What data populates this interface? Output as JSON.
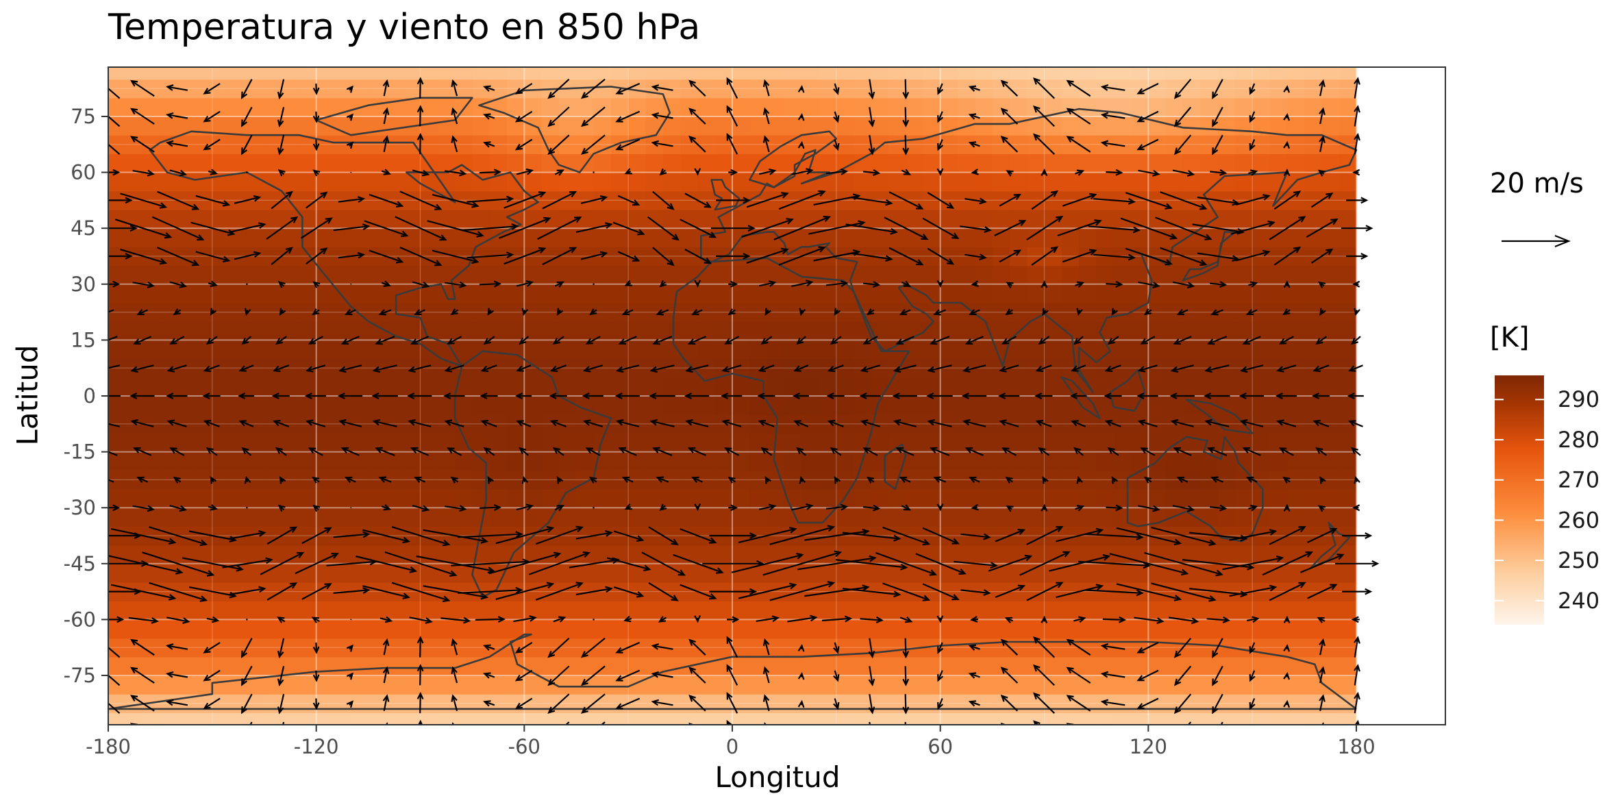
{
  "chart_data": {
    "type": "heatmap",
    "title": "Temperatura y viento en 850 hPa",
    "xlabel": "Longitud",
    "ylabel": "Latitud",
    "xlim": [
      -180,
      180
    ],
    "ylim": [
      -87,
      87
    ],
    "x_ticks": [
      "-180",
      "-120",
      "-60",
      "0",
      "60",
      "120",
      "180"
    ],
    "y_ticks": [
      "75",
      "60",
      "45",
      "30",
      "15",
      "0",
      "-15",
      "-30",
      "-45",
      "-60",
      "-75"
    ],
    "fill_variable": "temperature",
    "legend": {
      "title": "[K]",
      "ticks": [
        "290",
        "280",
        "270",
        "260",
        "250",
        "240"
      ],
      "range": [
        234,
        296
      ],
      "colors": [
        "#fff5eb",
        "#fdd0a2",
        "#fd8d3c",
        "#e6550d",
        "#a63603",
        "#7f2704"
      ]
    },
    "vector_legend": {
      "label": "20 m/s",
      "magnitude": 20
    },
    "grid": true,
    "coastlines": true
  }
}
